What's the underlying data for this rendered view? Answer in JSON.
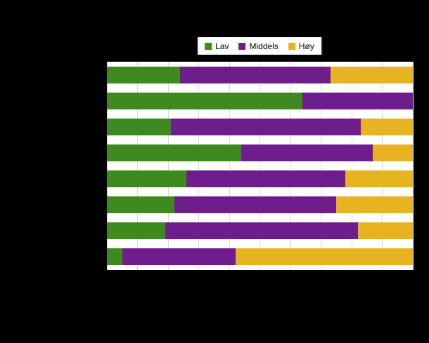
{
  "legend": {
    "items": [
      {
        "label": "Lav",
        "color": "#3e8a1e"
      },
      {
        "label": "Middels",
        "color": "#6e1e8c"
      },
      {
        "label": "Høy",
        "color": "#e8b320"
      }
    ]
  },
  "chart_data": {
    "type": "bar",
    "orientation": "horizontal",
    "stacked": true,
    "unit": "percent",
    "title": "",
    "xlabel": "",
    "ylabel": "",
    "x_axis": {
      "min": 0,
      "max": 100,
      "gridline_step": 10
    },
    "grid": true,
    "legend_position": "top-center",
    "categories": [
      "",
      "",
      "",
      "",
      "",
      "",
      "",
      ""
    ],
    "series_names": [
      "Lav",
      "Middels",
      "Høy"
    ],
    "colors": [
      "#3e8a1e",
      "#6e1e8c",
      "#e8b320"
    ],
    "bars": [
      {
        "values": [
          24,
          49,
          27
        ]
      },
      {
        "values": [
          64,
          36,
          0
        ]
      },
      {
        "values": [
          21,
          62,
          17
        ]
      },
      {
        "values": [
          44,
          43,
          13
        ]
      },
      {
        "values": [
          26,
          52,
          22
        ]
      },
      {
        "values": [
          22,
          53,
          25
        ]
      },
      {
        "values": [
          19,
          63,
          18
        ]
      },
      {
        "values": [
          5,
          37,
          58
        ]
      }
    ]
  }
}
